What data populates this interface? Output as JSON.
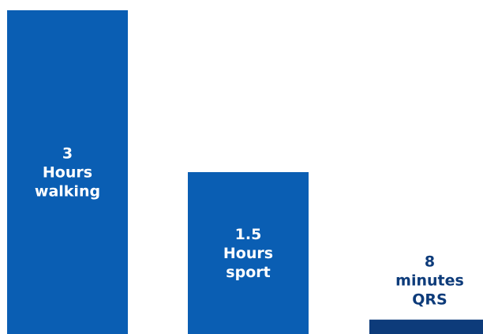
{
  "chart_data": {
    "type": "bar",
    "categories": [
      "walking",
      "sport",
      "QRS"
    ],
    "values": [
      180,
      90,
      8
    ],
    "units": [
      "Hours",
      "Hours",
      "minutes"
    ],
    "value_unit": "minutes",
    "bars": [
      {
        "name": "walking",
        "value": 180,
        "label_lines": [
          "3",
          "Hours",
          "walking"
        ]
      },
      {
        "name": "sport",
        "value": 90,
        "label_lines": [
          "1.5",
          "Hours",
          "sport"
        ]
      },
      {
        "name": "QRS",
        "value": 8,
        "label_lines": [
          "8",
          "minutes",
          "QRS"
        ]
      }
    ],
    "colors": {
      "bar": "#0a5eb3",
      "bar_small": "#0d3b7a",
      "label_inside": "#ffffff",
      "label_outside": "#0d3b7a"
    },
    "ylim": [
      0,
      180
    ],
    "grid": false,
    "legend": "none",
    "title": "",
    "xlabel": "",
    "ylabel": ""
  }
}
